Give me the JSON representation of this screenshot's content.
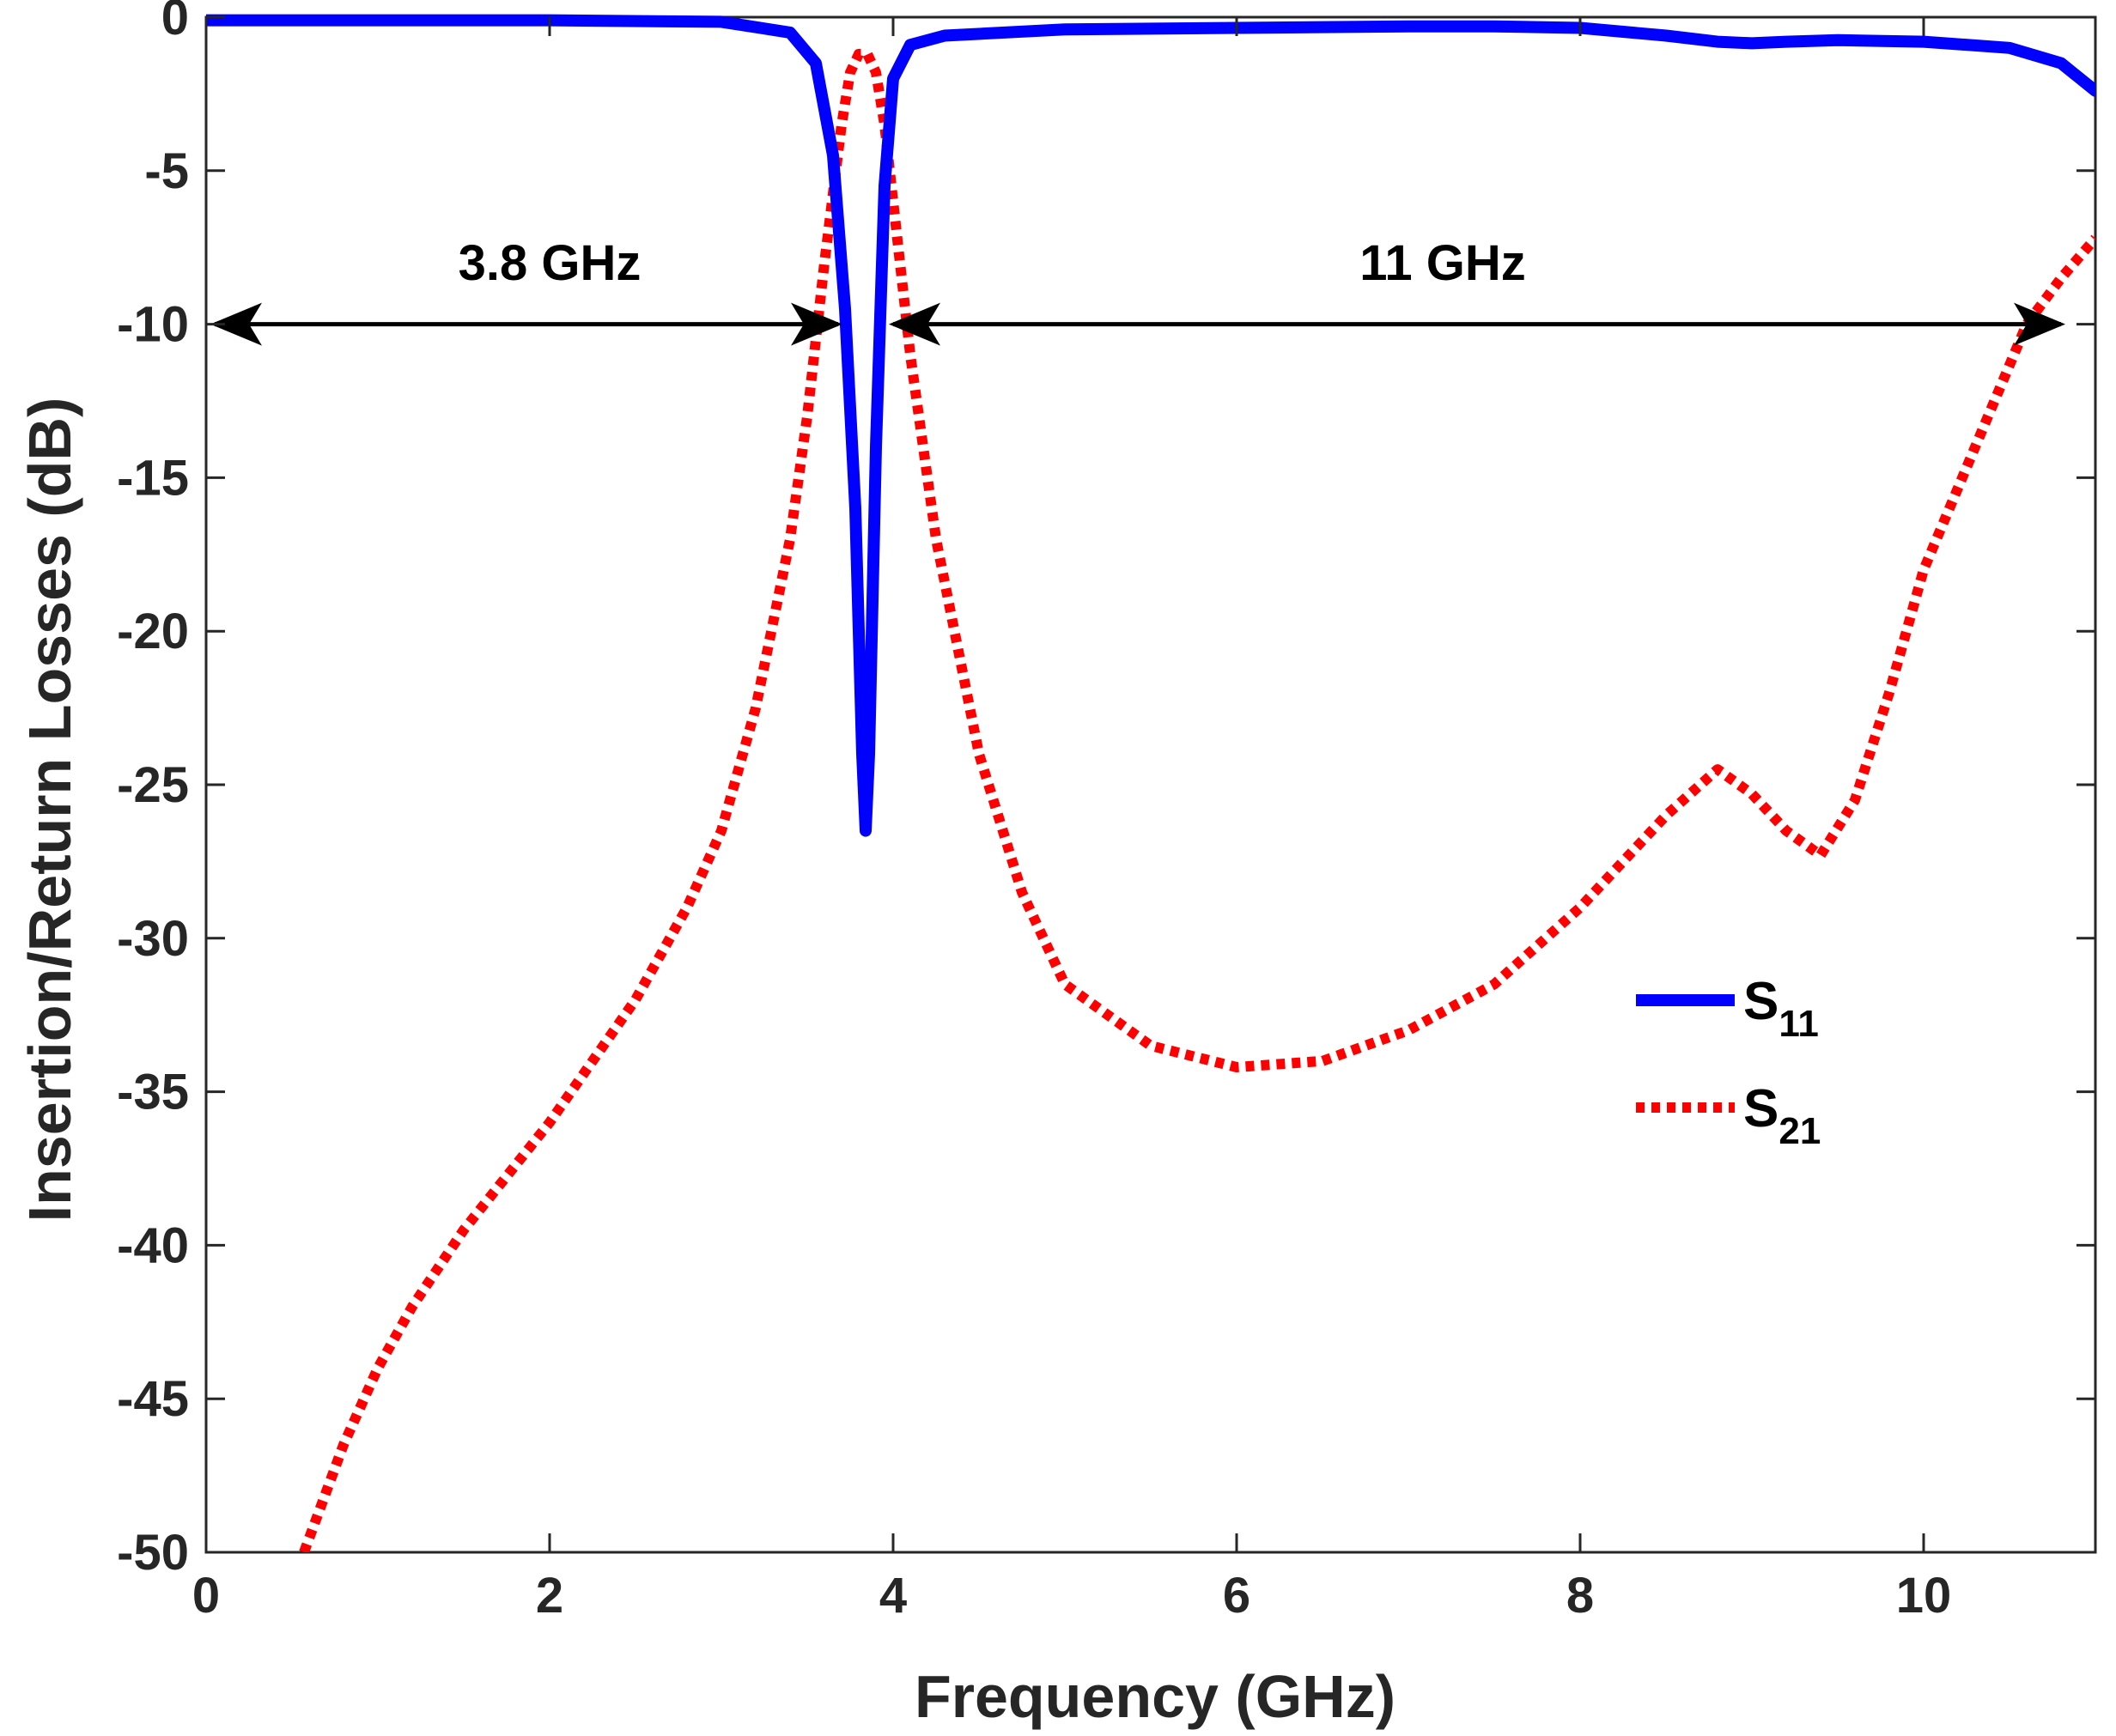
{
  "chart_data": {
    "type": "line",
    "title": "",
    "xlabel": "Frequency (GHz)",
    "ylabel": "Insertion/Return Losses (dB)",
    "xlim": [
      0,
      11
    ],
    "ylim": [
      -50,
      0
    ],
    "xticks": [
      0,
      2,
      4,
      6,
      8,
      10
    ],
    "yticks": [
      0,
      -5,
      -10,
      -15,
      -20,
      -25,
      -30,
      -35,
      -40,
      -45,
      -50
    ],
    "grid": false,
    "legend_position": "right-middle",
    "colors": {
      "s11": "#0000ff",
      "s21": "#ff0000",
      "annotation": "#000000",
      "axis": "#262626"
    },
    "series": [
      {
        "name": "S11",
        "legend_main": "S",
        "legend_sub": "11",
        "style": "solid",
        "x": [
          0,
          1,
          2,
          3,
          3.4,
          3.55,
          3.65,
          3.72,
          3.78,
          3.82,
          3.84,
          3.86,
          3.9,
          3.95,
          4.0,
          4.1,
          4.3,
          5,
          6,
          7,
          7.5,
          8,
          8.5,
          8.8,
          9,
          9.2,
          9.5,
          10,
          10.5,
          10.8,
          11
        ],
        "y": [
          -0.1,
          -0.1,
          -0.1,
          -0.15,
          -0.5,
          -1.5,
          -4.5,
          -9.5,
          -16,
          -24,
          -26.5,
          -24,
          -14,
          -5.5,
          -2,
          -0.9,
          -0.6,
          -0.4,
          -0.35,
          -0.3,
          -0.3,
          -0.35,
          -0.6,
          -0.8,
          -0.85,
          -0.8,
          -0.75,
          -0.8,
          -1.0,
          -1.5,
          -2.4
        ]
      },
      {
        "name": "S21",
        "legend_main": "S",
        "legend_sub": "21",
        "style": "dotted",
        "x": [
          0.57,
          0.8,
          1.0,
          1.2,
          1.5,
          2.0,
          2.5,
          2.8,
          3.0,
          3.2,
          3.4,
          3.5,
          3.6,
          3.7,
          3.75,
          3.8,
          3.85,
          3.9,
          3.95,
          4.0,
          4.1,
          4.25,
          4.5,
          4.75,
          5.0,
          5.5,
          6.0,
          6.5,
          7.0,
          7.5,
          8.0,
          8.5,
          8.8,
          9.0,
          9.2,
          9.4,
          9.6,
          9.8,
          10.0,
          10.3,
          10.6,
          10.8,
          11.0
        ],
        "y": [
          -50,
          -46.5,
          -44,
          -42,
          -39.5,
          -36,
          -32,
          -29,
          -26.5,
          -22.5,
          -17,
          -13,
          -8,
          -3.5,
          -1.8,
          -1.2,
          -1.2,
          -1.8,
          -3.5,
          -6,
          -11,
          -17,
          -24,
          -28.5,
          -31.5,
          -33.5,
          -34.2,
          -34,
          -33,
          -31.5,
          -29,
          -26,
          -24.5,
          -25.3,
          -26.5,
          -27.3,
          -25.5,
          -22,
          -18,
          -14,
          -10,
          -8.5,
          -7.2
        ]
      }
    ],
    "annotations": [
      {
        "text": "3.8 GHz",
        "x": 2.0,
        "y": -8,
        "arrow_from": 0.05,
        "arrow_to": 3.68,
        "arrow_y": -10
      },
      {
        "text": "11 GHz",
        "x": 7.2,
        "y": -8,
        "arrow_from": 4.0,
        "arrow_to": 10.8,
        "arrow_y": -10
      }
    ]
  }
}
